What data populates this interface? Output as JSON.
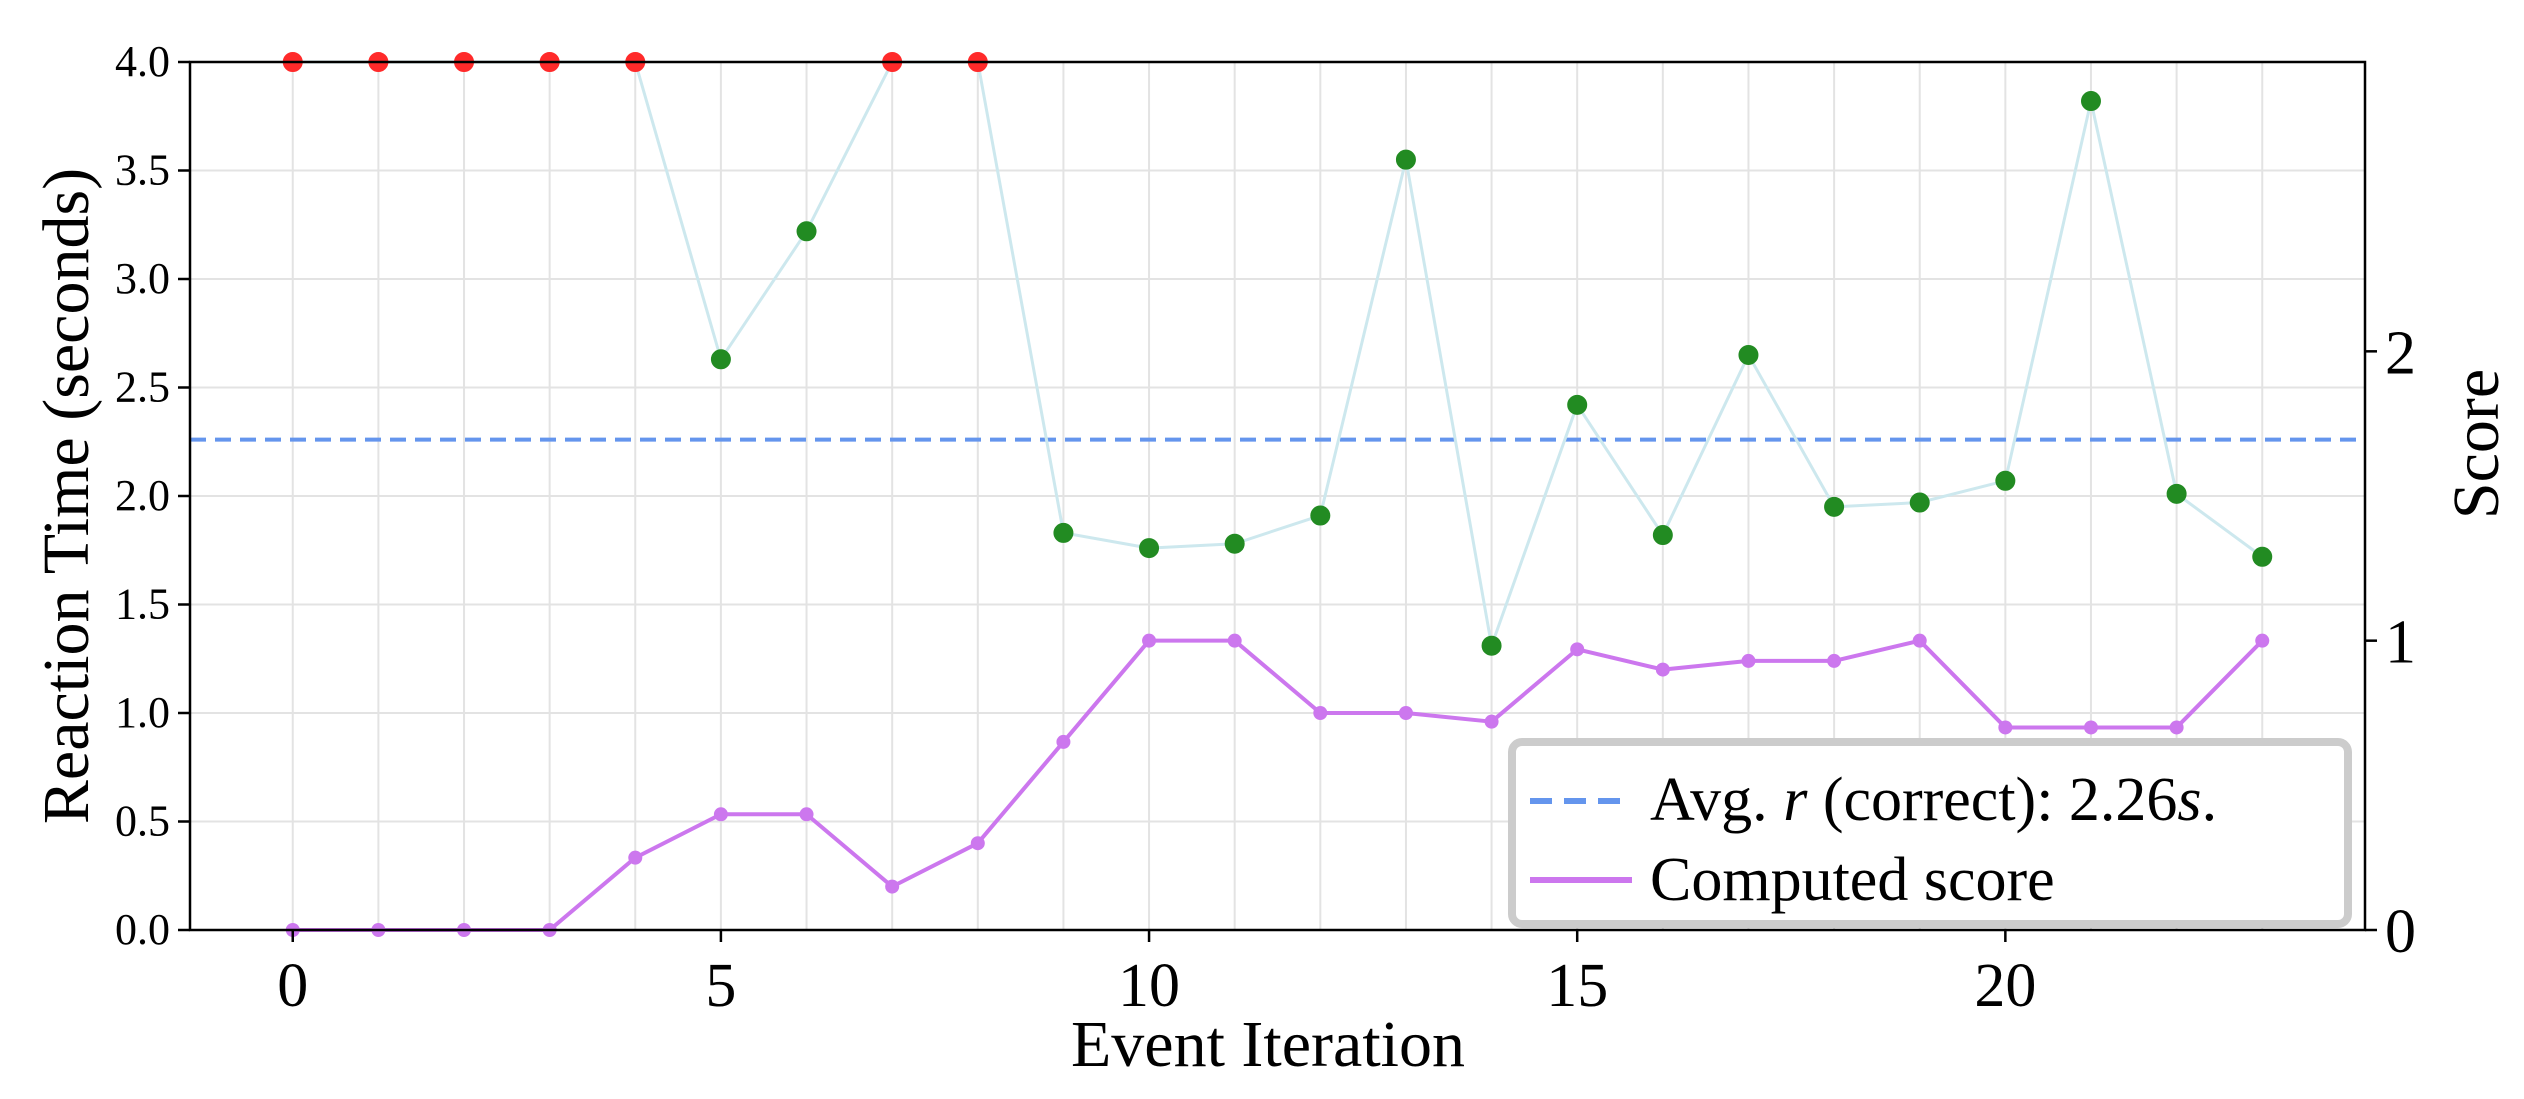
{
  "chart_data": {
    "type": "line",
    "xlabel": "Event Iteration",
    "ylabel": "Reaction Time (seconds)",
    "y2label": "Score",
    "xlim": [
      -1.2,
      24.2
    ],
    "ylim": [
      0,
      4.0
    ],
    "y2lim": [
      0,
      3.0
    ],
    "x_ticks": [
      0,
      5,
      10,
      15,
      20
    ],
    "y_ticks": [
      "0.0",
      "0.5",
      "1.0",
      "1.5",
      "2.0",
      "2.5",
      "3.0",
      "3.5",
      "4.0"
    ],
    "y2_ticks": [
      "0",
      "1",
      "2"
    ],
    "grid": true,
    "legend_position": "lower-right",
    "avg_reaction_time": 2.26,
    "series": [
      {
        "axis": "left",
        "style": "line+markers",
        "line_color": "#cde8ee",
        "x": [
          0,
          1,
          2,
          3,
          4,
          5,
          6,
          7,
          8,
          9,
          10,
          11,
          12,
          13,
          14,
          15,
          16,
          17,
          18,
          19,
          20,
          21,
          22,
          23
        ],
        "values": [
          4.0,
          4.0,
          4.0,
          4.0,
          4.0,
          2.63,
          3.22,
          4.0,
          4.0,
          1.83,
          1.76,
          1.78,
          1.91,
          3.55,
          1.31,
          2.42,
          1.82,
          2.65,
          1.95,
          1.97,
          2.07,
          3.82,
          2.01,
          1.72
        ],
        "marker_status": [
          "incorrect",
          "incorrect",
          "incorrect",
          "incorrect",
          "incorrect",
          "correct",
          "correct",
          "incorrect",
          "incorrect",
          "correct",
          "correct",
          "correct",
          "correct",
          "correct",
          "correct",
          "correct",
          "correct",
          "correct",
          "correct",
          "correct",
          "correct",
          "correct",
          "correct",
          "correct"
        ]
      },
      {
        "name": "Computed score",
        "axis": "right",
        "style": "line+markers",
        "color": "#cc77ee",
        "x": [
          0,
          1,
          2,
          3,
          4,
          5,
          6,
          7,
          8,
          9,
          10,
          11,
          12,
          13,
          14,
          15,
          16,
          17,
          18,
          19,
          20,
          21,
          22,
          23
        ],
        "values": [
          0,
          0,
          0,
          0,
          0.25,
          0.4,
          0.4,
          0.15,
          0.3,
          0.65,
          1.0,
          1.0,
          0.75,
          0.75,
          0.72,
          0.97,
          0.9,
          0.93,
          0.93,
          1.0,
          0.7,
          0.7,
          0.7,
          1.0
        ]
      }
    ],
    "colors": {
      "correct_marker": "#228b22",
      "incorrect_marker": "#ff2a2a",
      "avg_line": "#6495ed",
      "score_line": "#cc77ee"
    },
    "legend": [
      {
        "key": "avg",
        "prefix": "Avg. ",
        "var": "r",
        "middle": " (correct): 2.26",
        "unit": "s",
        "suffix": "."
      },
      {
        "key": "score",
        "label": "Computed score"
      }
    ]
  }
}
